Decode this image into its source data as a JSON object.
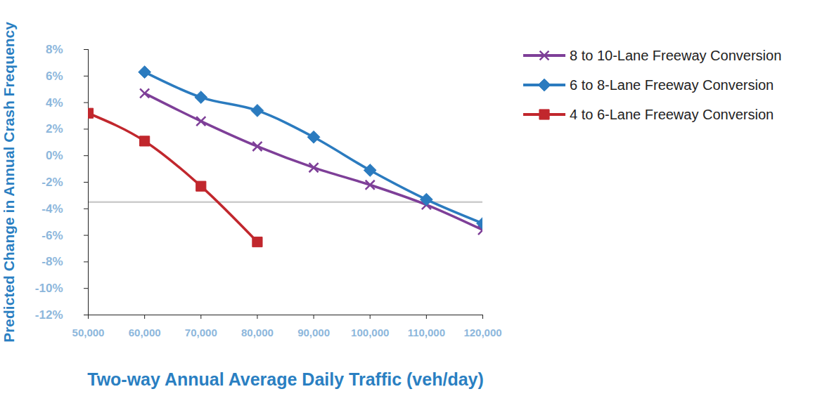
{
  "chart_data": {
    "type": "line",
    "x_label": "Two-way Annual Average Daily Traffic (veh/day)",
    "y_label": "Predicted Change in Annual Crash Frequency",
    "x": [
      50000,
      60000,
      70000,
      80000,
      90000,
      100000,
      110000,
      120000
    ],
    "series": [
      {
        "name": "8 to 10-Lane Freeway Conversion",
        "color": "#7e3f98",
        "marker": "x",
        "values": [
          null,
          4.7,
          2.6,
          0.7,
          -0.9,
          -2.2,
          -3.7,
          -5.6
        ]
      },
      {
        "name": "6 to 8-Lane Freeway Conversion",
        "color": "#2b7bbf",
        "marker": "diamond",
        "values": [
          null,
          6.3,
          4.4,
          3.4,
          1.4,
          -1.1,
          -3.3,
          -5.1
        ]
      },
      {
        "name": "4 to 6-Lane Freeway Conversion",
        "color": "#c1272d",
        "marker": "square",
        "values": [
          3.2,
          1.1,
          -2.3,
          -6.5,
          null,
          null,
          null,
          null
        ]
      }
    ],
    "reference_line": -3.5,
    "xlim": [
      50000,
      120000
    ],
    "xticks": [
      {
        "value": 50000,
        "label": "50,000"
      },
      {
        "value": 60000,
        "label": "60,000"
      },
      {
        "value": 70000,
        "label": "70,000"
      },
      {
        "value": 80000,
        "label": "80,000"
      },
      {
        "value": 90000,
        "label": "90,000"
      },
      {
        "value": 100000,
        "label": "100,000"
      },
      {
        "value": 110000,
        "label": "110,000"
      },
      {
        "value": 120000,
        "label": "120,000"
      }
    ],
    "ylim": [
      -12,
      8
    ],
    "yticks": [
      {
        "value": -12,
        "label": "-12%"
      },
      {
        "value": -10,
        "label": "-10%"
      },
      {
        "value": -8,
        "label": "-8%"
      },
      {
        "value": -6,
        "label": "-6%"
      },
      {
        "value": -4,
        "label": "-4%"
      },
      {
        "value": -2,
        "label": "-2%"
      },
      {
        "value": 0,
        "label": "0%"
      },
      {
        "value": 2,
        "label": "2%"
      },
      {
        "value": 4,
        "label": "4%"
      },
      {
        "value": 6,
        "label": "6%"
      },
      {
        "value": 8,
        "label": "8%"
      }
    ],
    "grid": false,
    "legend": "right"
  }
}
